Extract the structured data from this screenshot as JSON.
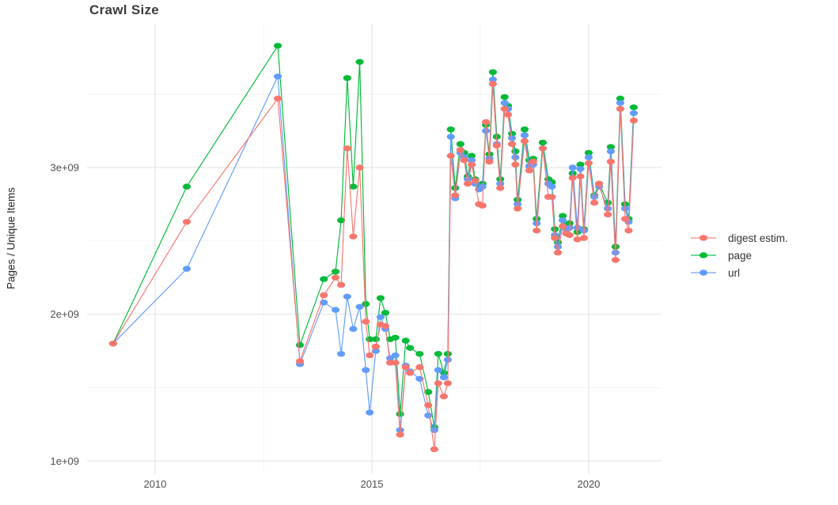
{
  "chart_data": {
    "type": "line",
    "title": "Crawl Size",
    "xlabel": "",
    "ylabel": "Pages / Unique Items",
    "grid": "on",
    "background": "#ffffff",
    "major_grid_color": "#e3e3e3",
    "minor_grid_color": "#efefef",
    "legend_position": "right",
    "xlim": [
      2008.43,
      2021.68
    ],
    "ylim_e9": [
      0.91,
      3.98
    ],
    "x_ticks": [
      {
        "value": 2010,
        "label": "2010"
      },
      {
        "value": 2015,
        "label": "2015"
      },
      {
        "value": 2020,
        "label": "2020"
      }
    ],
    "x_minor_ticks": [
      2012.5,
      2017.5
    ],
    "y_ticks": [
      {
        "value": 1,
        "label": "1e+09"
      },
      {
        "value": 2,
        "label": "2e+09"
      },
      {
        "value": 3,
        "label": "3e+09"
      }
    ],
    "y_minor_ticks": [
      1.5,
      2.5,
      3.5
    ],
    "value_unit": "items (values listed in billions, 1e9)",
    "x_years": [
      2009.03,
      2010.73,
      2012.83,
      2013.34,
      2013.89,
      2014.16,
      2014.29,
      2014.43,
      2014.57,
      2014.72,
      2014.86,
      2014.95,
      2015.09,
      2015.2,
      2015.31,
      2015.42,
      2015.54,
      2015.65,
      2015.78,
      2015.88,
      2016.1,
      2016.3,
      2016.44,
      2016.53,
      2016.66,
      2016.75,
      2016.82,
      2016.92,
      2017.04,
      2017.13,
      2017.21,
      2017.3,
      2017.38,
      2017.47,
      2017.55,
      2017.63,
      2017.71,
      2017.79,
      2017.88,
      2017.96,
      2018.06,
      2018.14,
      2018.23,
      2018.31,
      2018.36,
      2018.52,
      2018.63,
      2018.72,
      2018.8,
      2018.94,
      2019.07,
      2019.15,
      2019.22,
      2019.29,
      2019.4,
      2019.48,
      2019.56,
      2019.63,
      2019.74,
      2019.81,
      2019.89,
      2020.0,
      2020.13,
      2020.24,
      2020.44,
      2020.51,
      2020.62,
      2020.73,
      2020.84,
      2020.92,
      2021.04
    ],
    "series": [
      {
        "name": "digest estim.",
        "color": "#F8766D",
        "values_e9": [
          1.8,
          2.63,
          3.47,
          1.68,
          2.13,
          2.25,
          2.2,
          3.13,
          2.53,
          3.0,
          1.95,
          1.72,
          1.78,
          1.93,
          1.92,
          1.67,
          1.67,
          1.18,
          1.64,
          1.6,
          1.64,
          1.38,
          1.08,
          1.53,
          1.44,
          1.53,
          3.08,
          2.81,
          3.12,
          3.05,
          2.89,
          3.02,
          2.91,
          2.75,
          2.74,
          3.31,
          3.04,
          3.57,
          3.15,
          2.86,
          3.4,
          3.36,
          3.16,
          3.02,
          2.72,
          3.18,
          2.98,
          3.04,
          2.57,
          3.13,
          2.8,
          2.8,
          2.52,
          2.42,
          2.6,
          2.55,
          2.54,
          2.93,
          2.51,
          2.94,
          2.52,
          3.03,
          2.76,
          2.89,
          2.68,
          3.04,
          2.37,
          3.4,
          2.65,
          2.57,
          3.32
        ]
      },
      {
        "name": "page",
        "color": "#00BA38",
        "values_e9": [
          1.8,
          2.87,
          3.83,
          1.79,
          2.24,
          2.29,
          2.64,
          3.61,
          2.87,
          3.72,
          2.07,
          1.83,
          1.83,
          2.11,
          2.01,
          1.83,
          1.84,
          1.32,
          1.82,
          1.77,
          1.73,
          1.47,
          1.23,
          1.73,
          1.6,
          1.73,
          3.26,
          2.86,
          3.16,
          3.1,
          2.94,
          3.08,
          2.92,
          2.88,
          2.89,
          3.29,
          3.09,
          3.65,
          3.21,
          2.92,
          3.48,
          3.42,
          3.23,
          3.11,
          2.78,
          3.26,
          3.05,
          3.06,
          2.65,
          3.17,
          2.92,
          2.9,
          2.58,
          2.49,
          2.67,
          2.61,
          2.62,
          2.96,
          2.56,
          3.02,
          2.58,
          3.1,
          2.81,
          2.89,
          2.76,
          3.14,
          2.46,
          3.47,
          2.75,
          2.65,
          3.41
        ]
      },
      {
        "name": "url",
        "color": "#619CFF",
        "values_e9": [
          1.8,
          2.31,
          3.62,
          1.66,
          2.08,
          2.03,
          1.73,
          2.12,
          1.9,
          2.05,
          1.62,
          1.33,
          1.75,
          1.98,
          1.9,
          1.7,
          1.72,
          1.21,
          1.65,
          1.61,
          1.56,
          1.31,
          1.21,
          1.62,
          1.57,
          1.69,
          3.21,
          2.79,
          3.1,
          3.07,
          2.92,
          3.05,
          2.89,
          2.85,
          2.87,
          3.25,
          3.06,
          3.6,
          3.16,
          2.89,
          3.44,
          3.4,
          3.2,
          3.07,
          2.75,
          3.22,
          3.01,
          3.02,
          2.62,
          3.13,
          2.89,
          2.87,
          2.54,
          2.46,
          2.64,
          2.58,
          2.59,
          3.0,
          2.59,
          2.99,
          2.57,
          3.07,
          2.8,
          2.87,
          2.72,
          3.11,
          2.42,
          3.44,
          2.72,
          2.63,
          3.37
        ]
      }
    ]
  },
  "legend": {
    "items": [
      {
        "label": "digest estim."
      },
      {
        "label": "page"
      },
      {
        "label": "url"
      }
    ]
  }
}
